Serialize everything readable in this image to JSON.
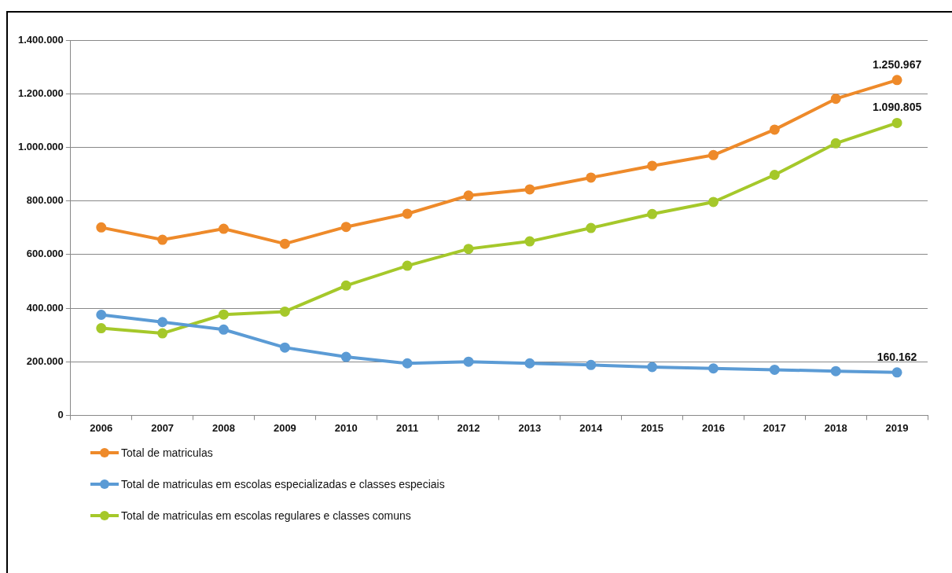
{
  "chart_data": {
    "type": "line",
    "categories": [
      "2006",
      "2007",
      "2008",
      "2009",
      "2010",
      "2011",
      "2012",
      "2013",
      "2014",
      "2015",
      "2016",
      "2017",
      "2018",
      "2019"
    ],
    "series": [
      {
        "name": "Total de matriculas",
        "color": "#ee8a2a",
        "values": [
          701000,
          655000,
          696000,
          640000,
          703000,
          752000,
          820000,
          843000,
          887000,
          931000,
          971000,
          1066000,
          1181000,
          1250967
        ],
        "value_labels": [
          null,
          null,
          null,
          null,
          null,
          null,
          null,
          null,
          null,
          null,
          null,
          null,
          null,
          "1.250.967"
        ]
      },
      {
        "name": "Total de matriculas em escolas especializadas e classes especiais",
        "color": "#5b9bd5",
        "values": [
          375000,
          348000,
          320000,
          253000,
          218000,
          194000,
          200000,
          194000,
          188000,
          180000,
          175000,
          170000,
          165000,
          160162
        ],
        "value_labels": [
          null,
          null,
          null,
          null,
          null,
          null,
          null,
          null,
          null,
          null,
          null,
          null,
          null,
          "160.162"
        ]
      },
      {
        "name": "Total de matriculas em escolas regulares e classes comuns",
        "color": "#a5c82a",
        "values": [
          325000,
          306000,
          376000,
          387000,
          484000,
          558000,
          621000,
          649000,
          699000,
          751000,
          796000,
          897000,
          1015000,
          1090805
        ],
        "value_labels": [
          null,
          null,
          null,
          null,
          null,
          null,
          null,
          null,
          null,
          null,
          null,
          null,
          null,
          "1.090.805"
        ]
      }
    ],
    "ylim": [
      0,
      1400000
    ],
    "yticks": [
      {
        "value": 0,
        "label": "0"
      },
      {
        "value": 200000,
        "label": "200.000"
      },
      {
        "value": 400000,
        "label": "400.000"
      },
      {
        "value": 600000,
        "label": "600.000"
      },
      {
        "value": 800000,
        "label": "800.000"
      },
      {
        "value": 1000000,
        "label": "1.000.000"
      },
      {
        "value": 1200000,
        "label": "1.200.000"
      },
      {
        "value": 1400000,
        "label": "1.400.000"
      }
    ],
    "grid": "y",
    "legend": "bottom left",
    "marker": "circle",
    "line_style": "solid"
  }
}
